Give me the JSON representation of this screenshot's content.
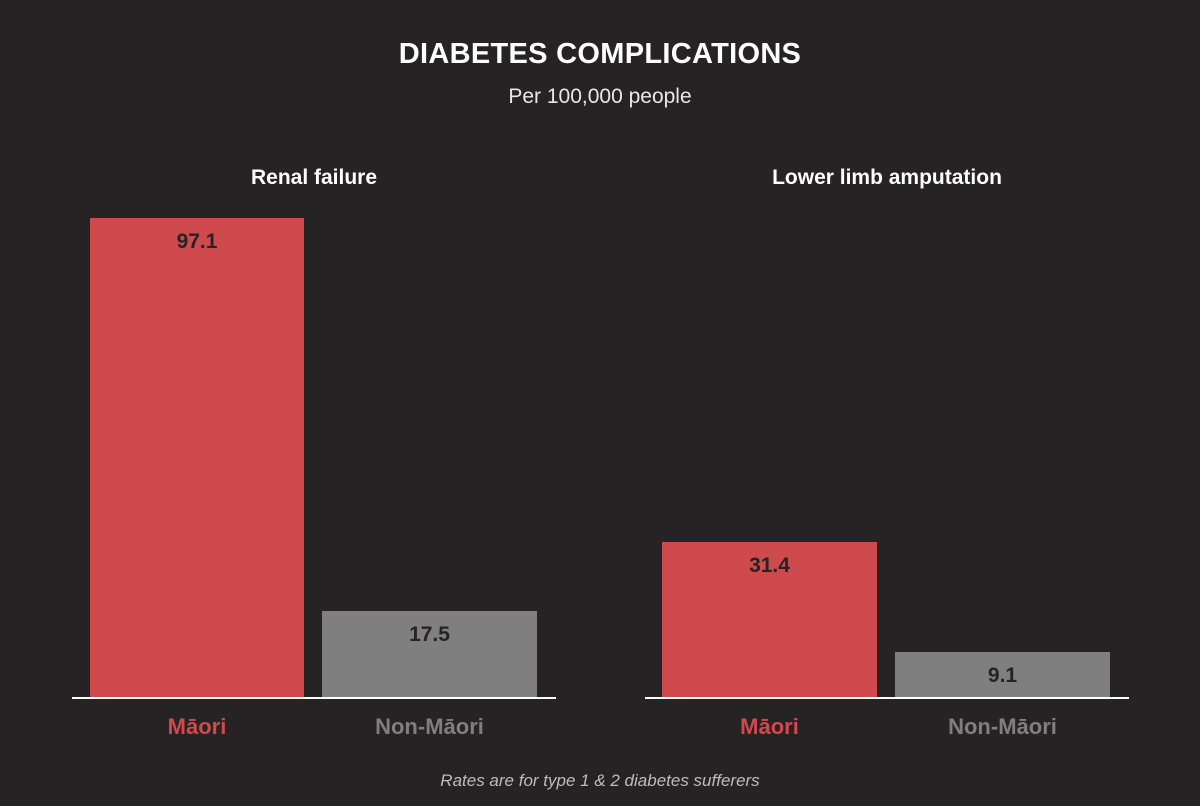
{
  "header": {
    "title": "DIABETES COMPLICATIONS",
    "subtitle": "Per 100,000 people"
  },
  "footnote": "Rates are for type 1 & 2 diabetes sufferers",
  "colors": {
    "background": "#252324",
    "maori": "#cf4a4d",
    "non_maori": "#7f7f7f",
    "bar_label": "#252324",
    "axis": "#ffffff"
  },
  "chart_data": [
    {
      "type": "bar",
      "title": "Renal failure",
      "categories": [
        "Māori",
        "Non-Māori"
      ],
      "values": [
        97.1,
        17.5
      ],
      "value_labels": [
        "97.1",
        "17.5"
      ],
      "ylim": [
        0,
        97.1
      ],
      "grid": false
    },
    {
      "type": "bar",
      "title": "Lower limb amputation",
      "categories": [
        "Māori",
        "Non-Māori"
      ],
      "values": [
        31.4,
        9.1
      ],
      "value_labels": [
        "31.4",
        "9.1"
      ],
      "ylim": [
        0,
        97.1
      ],
      "grid": false
    }
  ]
}
